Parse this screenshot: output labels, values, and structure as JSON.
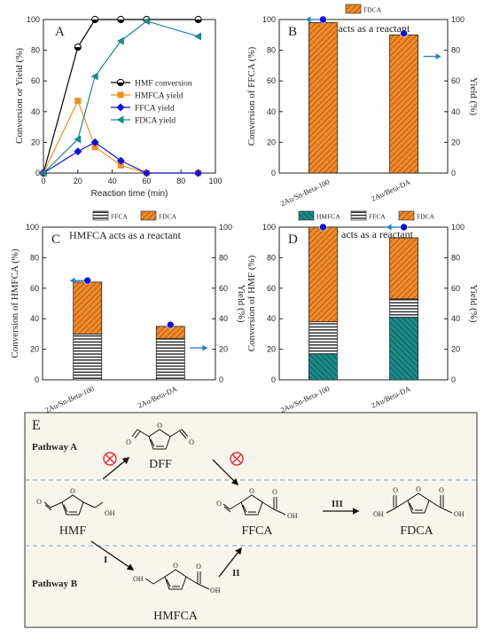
{
  "colors": {
    "black": "#000000",
    "orange": "#f28e1c",
    "hatch_orange": "#e8661c",
    "blue": "#1010e0",
    "teal": "#1a8a88",
    "teal_dark": "#0c5a58",
    "arrow_blue": "#2a7fc9",
    "title_blue": "#1f3c88",
    "panel_bg": "#f8f5ec",
    "red_x": "#e0303a"
  },
  "chart_data": [
    {
      "type": "line",
      "panel": "A",
      "xlabel": "Reaction time (min)",
      "ylabel": "Conversion or Yield (%)",
      "xlim": [
        0,
        100
      ],
      "ylim": [
        0,
        100
      ],
      "xticks": [
        0,
        20,
        40,
        60,
        80,
        100
      ],
      "yticks": [
        0,
        20,
        40,
        60,
        80,
        100
      ],
      "legend_position": "center-right",
      "series": [
        {
          "name": "HMF conversion",
          "marker": "circle-half",
          "color": "#000000",
          "x": [
            0,
            20,
            30,
            45,
            60,
            90
          ],
          "y": [
            0,
            82,
            100,
            100,
            100,
            100
          ]
        },
        {
          "name": "HMFCA yield",
          "marker": "square",
          "color": "#f28e1c",
          "x": [
            0,
            20,
            30,
            45,
            60,
            90
          ],
          "y": [
            0,
            47,
            17,
            5,
            0,
            0
          ]
        },
        {
          "name": "FFCA yield",
          "marker": "diamond",
          "color": "#1010e0",
          "x": [
            0,
            20,
            30,
            45,
            60,
            90
          ],
          "y": [
            0,
            14,
            20,
            8,
            0,
            0
          ]
        },
        {
          "name": "FDCA yield",
          "marker": "triangle-left",
          "color": "#1a8a88",
          "x": [
            0,
            20,
            30,
            45,
            60,
            90
          ],
          "y": [
            0,
            22,
            63,
            86,
            99,
            89
          ]
        }
      ]
    },
    {
      "type": "bar",
      "panel": "B",
      "title": "FFCA acts as a reactant",
      "categories": [
        "2Au/Sn-Beta-100",
        "2Au/Beta-DA"
      ],
      "ylabel": "Conversion of FFCA (%)",
      "y2label": "Yield (%)",
      "ylim": [
        0,
        100
      ],
      "yticks": [
        0,
        20,
        40,
        60,
        80,
        100
      ],
      "legend": [
        "FDCA"
      ],
      "stacked_series": [
        {
          "name": "FDCA",
          "values": [
            98,
            90
          ]
        }
      ],
      "conversion": [
        100,
        91
      ],
      "arrows": [
        "left",
        "right"
      ]
    },
    {
      "type": "bar",
      "panel": "C",
      "title": "HMFCA acts as a reactant",
      "categories": [
        "2Au/Sn-Beta-100",
        "2Au/Beta-DA"
      ],
      "ylabel": "Conversion of HMFCA (%)",
      "y2label": "Yield (%)",
      "ylim": [
        0,
        100
      ],
      "yticks": [
        0,
        20,
        40,
        60,
        80,
        100
      ],
      "legend": [
        "FFCA",
        "FDCA"
      ],
      "stacked_series": [
        {
          "name": "FFCA",
          "values": [
            30,
            27
          ]
        },
        {
          "name": "FDCA",
          "values": [
            34,
            8
          ]
        }
      ],
      "conversion": [
        65,
        36
      ],
      "arrows": [
        "left",
        "right"
      ]
    },
    {
      "type": "bar",
      "panel": "D",
      "title": "HMF acts as a reactant",
      "categories": [
        "2Au/Sn-Beta-100",
        "2Au/Beta-DA"
      ],
      "ylabel": "Conversion of HMF (%)",
      "y2label": "Yield (%)",
      "ylim": [
        0,
        100
      ],
      "yticks": [
        0,
        20,
        40,
        60,
        80,
        100
      ],
      "legend": [
        "HMFCA",
        "FFCA",
        "FDCA"
      ],
      "stacked_series": [
        {
          "name": "HMFCA",
          "values": [
            17,
            41
          ]
        },
        {
          "name": "FFCA",
          "values": [
            21,
            12
          ]
        },
        {
          "name": "FDCA",
          "values": [
            62,
            40
          ]
        }
      ],
      "conversion": [
        100,
        100
      ],
      "arrows": [
        "none",
        "left"
      ]
    }
  ],
  "scheme": {
    "label": "E",
    "pathway_a": "Pathway A",
    "pathway_b": "Pathway B",
    "molecules": {
      "dff": "DFF",
      "hmf": "HMF",
      "ffca": "FFCA",
      "fdca": "FDCA",
      "hmfca": "HMFCA"
    },
    "atoms": {
      "oh": "OH",
      "o": "O"
    },
    "steps": {
      "i": "I",
      "ii": "II",
      "iii": "III"
    }
  }
}
